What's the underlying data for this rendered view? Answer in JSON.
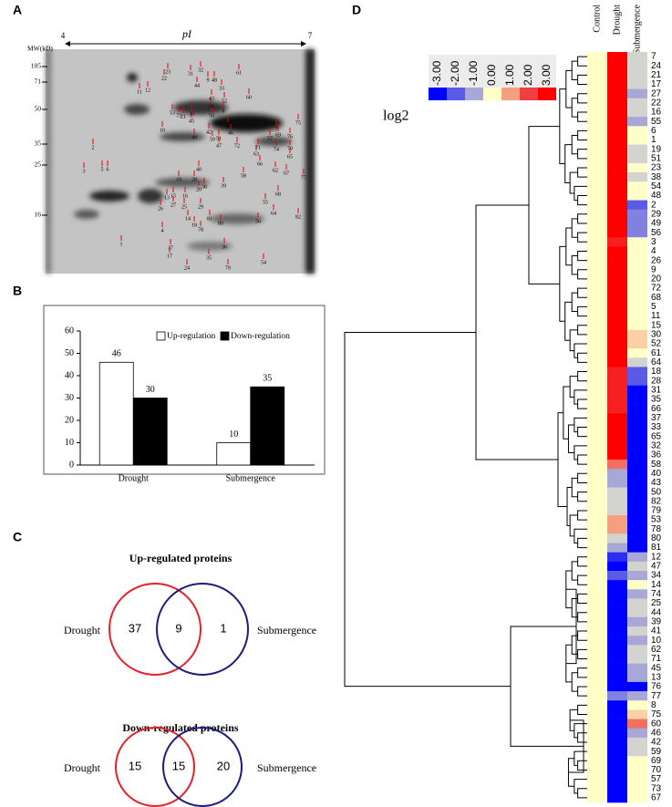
{
  "panels": {
    "a": "A",
    "b": "B",
    "c": "C",
    "d": "D"
  },
  "gel": {
    "mw_label": "MW(kD)",
    "pi_label": "pI",
    "pi_min": "4",
    "pi_max": "7",
    "mw_ticks": [
      "105",
      "71",
      "50",
      "35",
      "25",
      "16"
    ],
    "spots": [
      "1",
      "2",
      "3",
      "4",
      "5",
      "6",
      "7",
      "8",
      "9",
      "10",
      "11",
      "12",
      "13",
      "14",
      "15",
      "16",
      "17",
      "18",
      "19",
      "20",
      "21",
      "22",
      "23",
      "24",
      "25",
      "26",
      "27",
      "28",
      "29",
      "30",
      "31",
      "32",
      "33",
      "34",
      "35",
      "36",
      "37",
      "38",
      "39",
      "40",
      "41",
      "42",
      "43",
      "44",
      "45",
      "46",
      "47",
      "48",
      "49",
      "50",
      "51",
      "52",
      "53",
      "54",
      "55",
      "56",
      "57",
      "58",
      "59",
      "60",
      "61",
      "62",
      "63",
      "64",
      "65",
      "66",
      "67",
      "68",
      "69",
      "70",
      "71",
      "72",
      "73",
      "74",
      "75",
      "76",
      "77",
      "78",
      "79",
      "80",
      "81",
      "82"
    ]
  },
  "chart_data": {
    "type": "bar",
    "categories": [
      "Drought",
      "Submergence"
    ],
    "series": [
      {
        "name": "Up-regulation",
        "color": "#ffffff",
        "values": [
          46,
          10
        ]
      },
      {
        "name": "Down-regulation",
        "color": "#000000",
        "values": [
          30,
          35
        ]
      }
    ],
    "ylim": [
      0,
      60
    ],
    "yticks": [
      0,
      10,
      20,
      30,
      40,
      50,
      60
    ],
    "legend": "top"
  },
  "venn": [
    {
      "title": "Up-regulated proteins",
      "left": "Drought",
      "right": "Submergence",
      "left_only": 37,
      "both": 9,
      "right_only": 1,
      "left_color": "#e8202a",
      "right_color": "#1c1c7a"
    },
    {
      "title": "Down-regulated proteins",
      "left": "Drought",
      "right": "Submergence",
      "left_only": 15,
      "both": 15,
      "right_only": 20,
      "left_color": "#e8202a",
      "right_color": "#1c1c7a"
    }
  ],
  "heatmap": {
    "columns": [
      "Control",
      "Drought",
      "Submergence"
    ],
    "rows": [
      "7",
      "24",
      "21",
      "17",
      "27",
      "22",
      "16",
      "55",
      "6",
      "1",
      "19",
      "51",
      "23",
      "38",
      "54",
      "48",
      "2",
      "29",
      "49",
      "56",
      "3",
      "4",
      "26",
      "9",
      "20",
      "72",
      "68",
      "5",
      "11",
      "15",
      "30",
      "52",
      "61",
      "64",
      "18",
      "28",
      "31",
      "35",
      "66",
      "37",
      "33",
      "65",
      "32",
      "36",
      "58",
      "40",
      "43",
      "50",
      "82",
      "79",
      "53",
      "78",
      "80",
      "81",
      "12",
      "47",
      "34",
      "14",
      "74",
      "25",
      "44",
      "39",
      "41",
      "10",
      "62",
      "71",
      "45",
      "13",
      "76",
      "77",
      "8",
      "75",
      "60",
      "46",
      "42",
      "59",
      "69",
      "70",
      "57",
      "73",
      "67"
    ],
    "values": [
      [
        0,
        0,
        0,
        0,
        0,
        0,
        0,
        0,
        0,
        0,
        0,
        0,
        0,
        0,
        0,
        0,
        0,
        0,
        0,
        0,
        0,
        0,
        0,
        0,
        0,
        0,
        0,
        0,
        0,
        0,
        0,
        0,
        0,
        0,
        0,
        0,
        0,
        0,
        0,
        0,
        0,
        0,
        0,
        0,
        0,
        0,
        0,
        0,
        0,
        0,
        0,
        0,
        0,
        0,
        0,
        0,
        0,
        0,
        0,
        0,
        0,
        0,
        0,
        0,
        0,
        0,
        0,
        0,
        0,
        0,
        0,
        0,
        0,
        0,
        0,
        0,
        0,
        0,
        0,
        0,
        0
      ],
      [
        3,
        3,
        3,
        3,
        3,
        3,
        3,
        3,
        3,
        3,
        3,
        3,
        3,
        3,
        3,
        3,
        3,
        3,
        3,
        3,
        2.5,
        3,
        3,
        3,
        3,
        3,
        3,
        3,
        3,
        3,
        3,
        3,
        3,
        3,
        2.5,
        2.5,
        2.5,
        2.5,
        2.5,
        3,
        3,
        3,
        3,
        3,
        1.5,
        -1,
        -1,
        -0.5,
        -0.5,
        -0.5,
        1,
        1,
        -0.5,
        -1,
        -2.5,
        -3,
        -2,
        -3,
        -3,
        -3,
        -3,
        -3,
        -3,
        -3,
        -3,
        -3,
        -3,
        -3,
        -3,
        -1.5,
        -3,
        -3,
        -3,
        -3,
        -3,
        -3,
        -3,
        -3,
        -3,
        -3,
        -3
      ],
      [
        -0.5,
        -0.5,
        -0.5,
        -0.5,
        -1,
        -0.5,
        -0.5,
        -1,
        0,
        0,
        -0.5,
        -0.5,
        0,
        -0.5,
        0,
        0,
        -2,
        -1.5,
        -1.5,
        -1.5,
        0,
        0,
        0,
        0,
        0,
        0,
        0,
        0,
        0,
        0,
        0.5,
        0.5,
        0,
        -0.5,
        -2,
        -2,
        -3,
        -3,
        -3,
        -3,
        -3,
        -3,
        -3,
        -3,
        -3,
        -3,
        -3,
        -3,
        -3,
        -3,
        -3,
        -3,
        -3,
        -3,
        -1,
        -0.5,
        -1,
        0,
        -1,
        -0.5,
        -0.5,
        -1,
        -0.5,
        -1,
        -0.5,
        -0.5,
        -1,
        -1,
        -3,
        -1,
        0,
        0.5,
        1.5,
        -1,
        -0.5,
        -0.5,
        0,
        0,
        0,
        0,
        0
      ]
    ],
    "scale_label": "log2",
    "scale_ticks": [
      {
        "value": -3,
        "label": "-3.00"
      },
      {
        "value": -2,
        "label": "-2.00"
      },
      {
        "value": -1,
        "label": "-1.00"
      },
      {
        "value": 0,
        "label": "0.00"
      },
      {
        "value": 1,
        "label": "1.00"
      },
      {
        "value": 2,
        "label": "2.00"
      },
      {
        "value": 3,
        "label": "3.00"
      }
    ],
    "scale_colors": [
      "#0000ff",
      "#5a5ae6",
      "#a7a7d8",
      "#ffffc8",
      "#f4a080",
      "#ee4040",
      "#ff0000"
    ]
  }
}
